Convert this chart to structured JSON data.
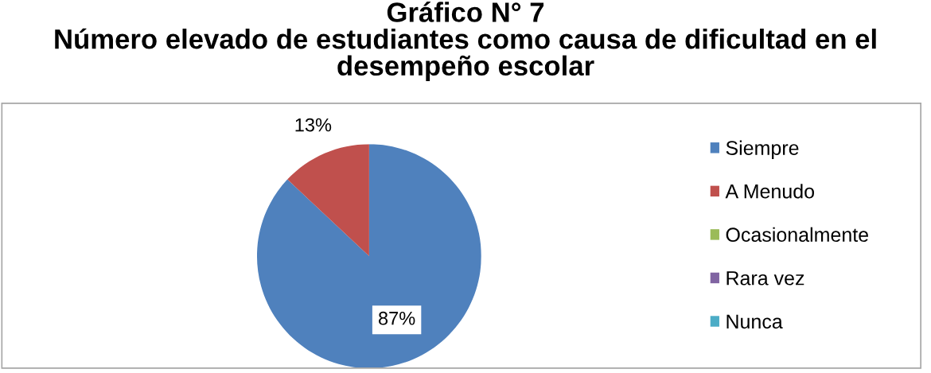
{
  "chart_data": {
    "type": "pie",
    "title": "Gráfico N° 7\nNúmero elevado de estudiantes como causa de dificultad en el\ndesempeño escolar",
    "categories": [
      "Siempre",
      "A Menudo",
      "Ocasionalmente",
      "Rara vez",
      "Nunca"
    ],
    "values": [
      87,
      13,
      0,
      0,
      0
    ],
    "colors": [
      "#4f81bd",
      "#c0504d",
      "#9bbb59",
      "#8064a2",
      "#4bacc6"
    ],
    "value_labels": [
      "87%",
      "13%",
      null,
      null,
      null
    ],
    "legend": "right"
  }
}
